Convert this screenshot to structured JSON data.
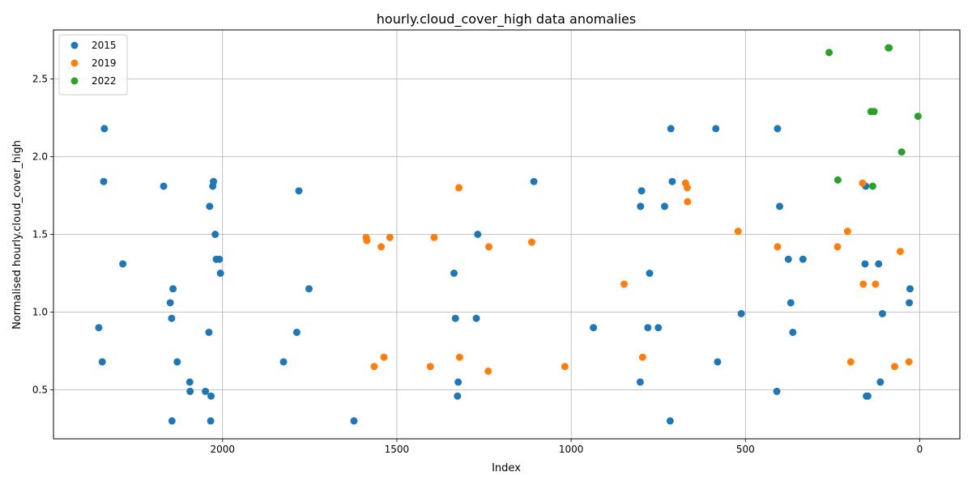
{
  "chart_data": {
    "type": "scatter",
    "title": "hourly.cloud_cover_high data anomalies",
    "xlabel": "Index",
    "ylabel": "Normalised hourly.cloud_cover_high",
    "x_inverted": true,
    "xlim": [
      2485,
      -115
    ],
    "ylim": [
      0.185,
      2.815
    ],
    "xticks": [
      2000,
      1500,
      1000,
      500,
      0
    ],
    "xtick_labels": [
      "2000",
      "1500",
      "1000",
      "500",
      "0"
    ],
    "yticks": [
      0.5,
      1.0,
      1.5,
      2.0,
      2.5
    ],
    "ytick_labels": [
      "0.5",
      "1.0",
      "1.5",
      "2.0",
      "2.5"
    ],
    "grid": true,
    "legend_position": "upper-left",
    "series": [
      {
        "name": "2015",
        "color": "#1f77b4",
        "points": [
          [
            2355,
            0.9
          ],
          [
            2345,
            0.68
          ],
          [
            2341,
            1.84
          ],
          [
            2339,
            2.18
          ],
          [
            2286,
            1.31
          ],
          [
            2169,
            1.81
          ],
          [
            2150,
            1.06
          ],
          [
            2146,
            0.96
          ],
          [
            2145,
            0.3
          ],
          [
            2142,
            1.15
          ],
          [
            2130,
            0.68
          ],
          [
            2094,
            0.55
          ],
          [
            2093,
            0.49
          ],
          [
            2049,
            0.49
          ],
          [
            2039,
            0.87
          ],
          [
            2037,
            1.68
          ],
          [
            2034,
            0.3
          ],
          [
            2033,
            0.46
          ],
          [
            2028,
            1.81
          ],
          [
            2026,
            1.84
          ],
          [
            2021,
            1.5
          ],
          [
            2018,
            1.34
          ],
          [
            2009,
            1.34
          ],
          [
            2006,
            1.25
          ],
          [
            1825,
            0.68
          ],
          [
            1787,
            0.87
          ],
          [
            1781,
            1.78
          ],
          [
            1752,
            1.15
          ],
          [
            1623,
            0.3
          ],
          [
            1336,
            1.25
          ],
          [
            1332,
            0.96
          ],
          [
            1326,
            0.46
          ],
          [
            1324,
            0.55
          ],
          [
            1272,
            0.96
          ],
          [
            1268,
            1.5
          ],
          [
            1107,
            1.84
          ],
          [
            936,
            0.9
          ],
          [
            802,
            0.55
          ],
          [
            801,
            1.68
          ],
          [
            798,
            1.78
          ],
          [
            780,
            0.9
          ],
          [
            775,
            1.25
          ],
          [
            750,
            0.9
          ],
          [
            732,
            1.68
          ],
          [
            716,
            0.3
          ],
          [
            714,
            2.18
          ],
          [
            710,
            1.84
          ],
          [
            585,
            2.18
          ],
          [
            580,
            0.68
          ],
          [
            512,
            0.99
          ],
          [
            410,
            0.49
          ],
          [
            408,
            2.18
          ],
          [
            402,
            1.68
          ],
          [
            377,
            1.34
          ],
          [
            370,
            1.06
          ],
          [
            364,
            0.87
          ],
          [
            335,
            1.34
          ],
          [
            157,
            1.31
          ],
          [
            155,
            1.81
          ],
          [
            153,
            0.46
          ],
          [
            149,
            0.46
          ],
          [
            118,
            1.31
          ],
          [
            113,
            0.55
          ],
          [
            107,
            0.99
          ],
          [
            30,
            1.06
          ],
          [
            28,
            1.15
          ]
        ]
      },
      {
        "name": "2019",
        "color": "#ff7f0e",
        "points": [
          [
            1588,
            1.48
          ],
          [
            1586,
            1.46
          ],
          [
            1565,
            0.65
          ],
          [
            1545,
            1.42
          ],
          [
            1537,
            0.71
          ],
          [
            1520,
            1.48
          ],
          [
            1404,
            0.65
          ],
          [
            1393,
            1.48
          ],
          [
            1322,
            1.8
          ],
          [
            1320,
            0.71
          ],
          [
            1238,
            0.62
          ],
          [
            1236,
            1.42
          ],
          [
            1113,
            1.45
          ],
          [
            1018,
            0.65
          ],
          [
            848,
            1.18
          ],
          [
            795,
            0.71
          ],
          [
            672,
            1.83
          ],
          [
            667,
            1.8
          ],
          [
            666,
            1.71
          ],
          [
            521,
            1.52
          ],
          [
            408,
            1.42
          ],
          [
            236,
            1.42
          ],
          [
            207,
            1.52
          ],
          [
            198,
            0.68
          ],
          [
            164,
            1.83
          ],
          [
            162,
            1.18
          ],
          [
            127,
            1.18
          ],
          [
            72,
            0.65
          ],
          [
            56,
            1.39
          ],
          [
            31,
            0.68
          ]
        ]
      },
      {
        "name": "2022",
        "color": "#2ca02c",
        "points": [
          [
            260,
            2.67
          ],
          [
            235,
            1.85
          ],
          [
            140,
            2.29
          ],
          [
            135,
            1.81
          ],
          [
            131,
            2.29
          ],
          [
            52,
            2.03
          ],
          [
            90,
            2.7
          ],
          [
            88,
            2.7
          ],
          [
            5,
            2.26
          ]
        ]
      }
    ]
  }
}
